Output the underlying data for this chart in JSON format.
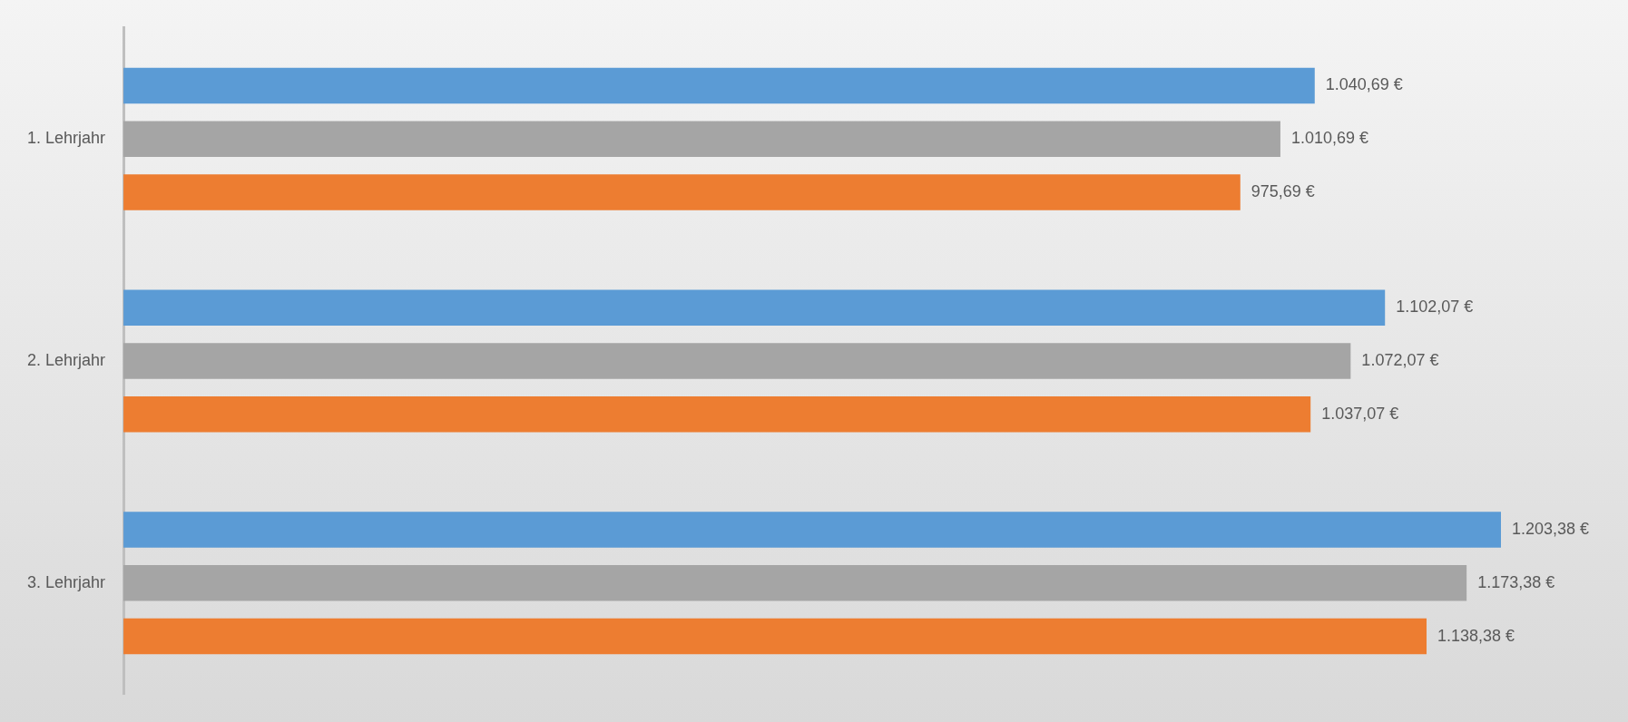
{
  "chart_data": {
    "type": "bar",
    "orientation": "horizontal",
    "categories": [
      "1. Lehrjahr",
      "2. Lehrjahr",
      "3. Lehrjahr"
    ],
    "series": [
      {
        "color": "#5b9bd5",
        "values": [
          1040.69,
          1102.07,
          1203.38
        ],
        "value_labels": [
          "1.040,69 €",
          "1.102,07 €",
          "1.203,38 €"
        ]
      },
      {
        "color": "#a5a5a5",
        "values": [
          1010.69,
          1072.07,
          1173.38
        ],
        "value_labels": [
          "1.010,69 €",
          "1.072,07 €",
          "1.173,38 €"
        ]
      },
      {
        "color": "#ed7d31",
        "values": [
          975.69,
          1037.07,
          1138.38
        ],
        "value_labels": [
          "975,69 €",
          "1.037,07 €",
          "1.138,38 €"
        ]
      }
    ],
    "grid": false,
    "legend": false,
    "tick_labels": "y"
  }
}
